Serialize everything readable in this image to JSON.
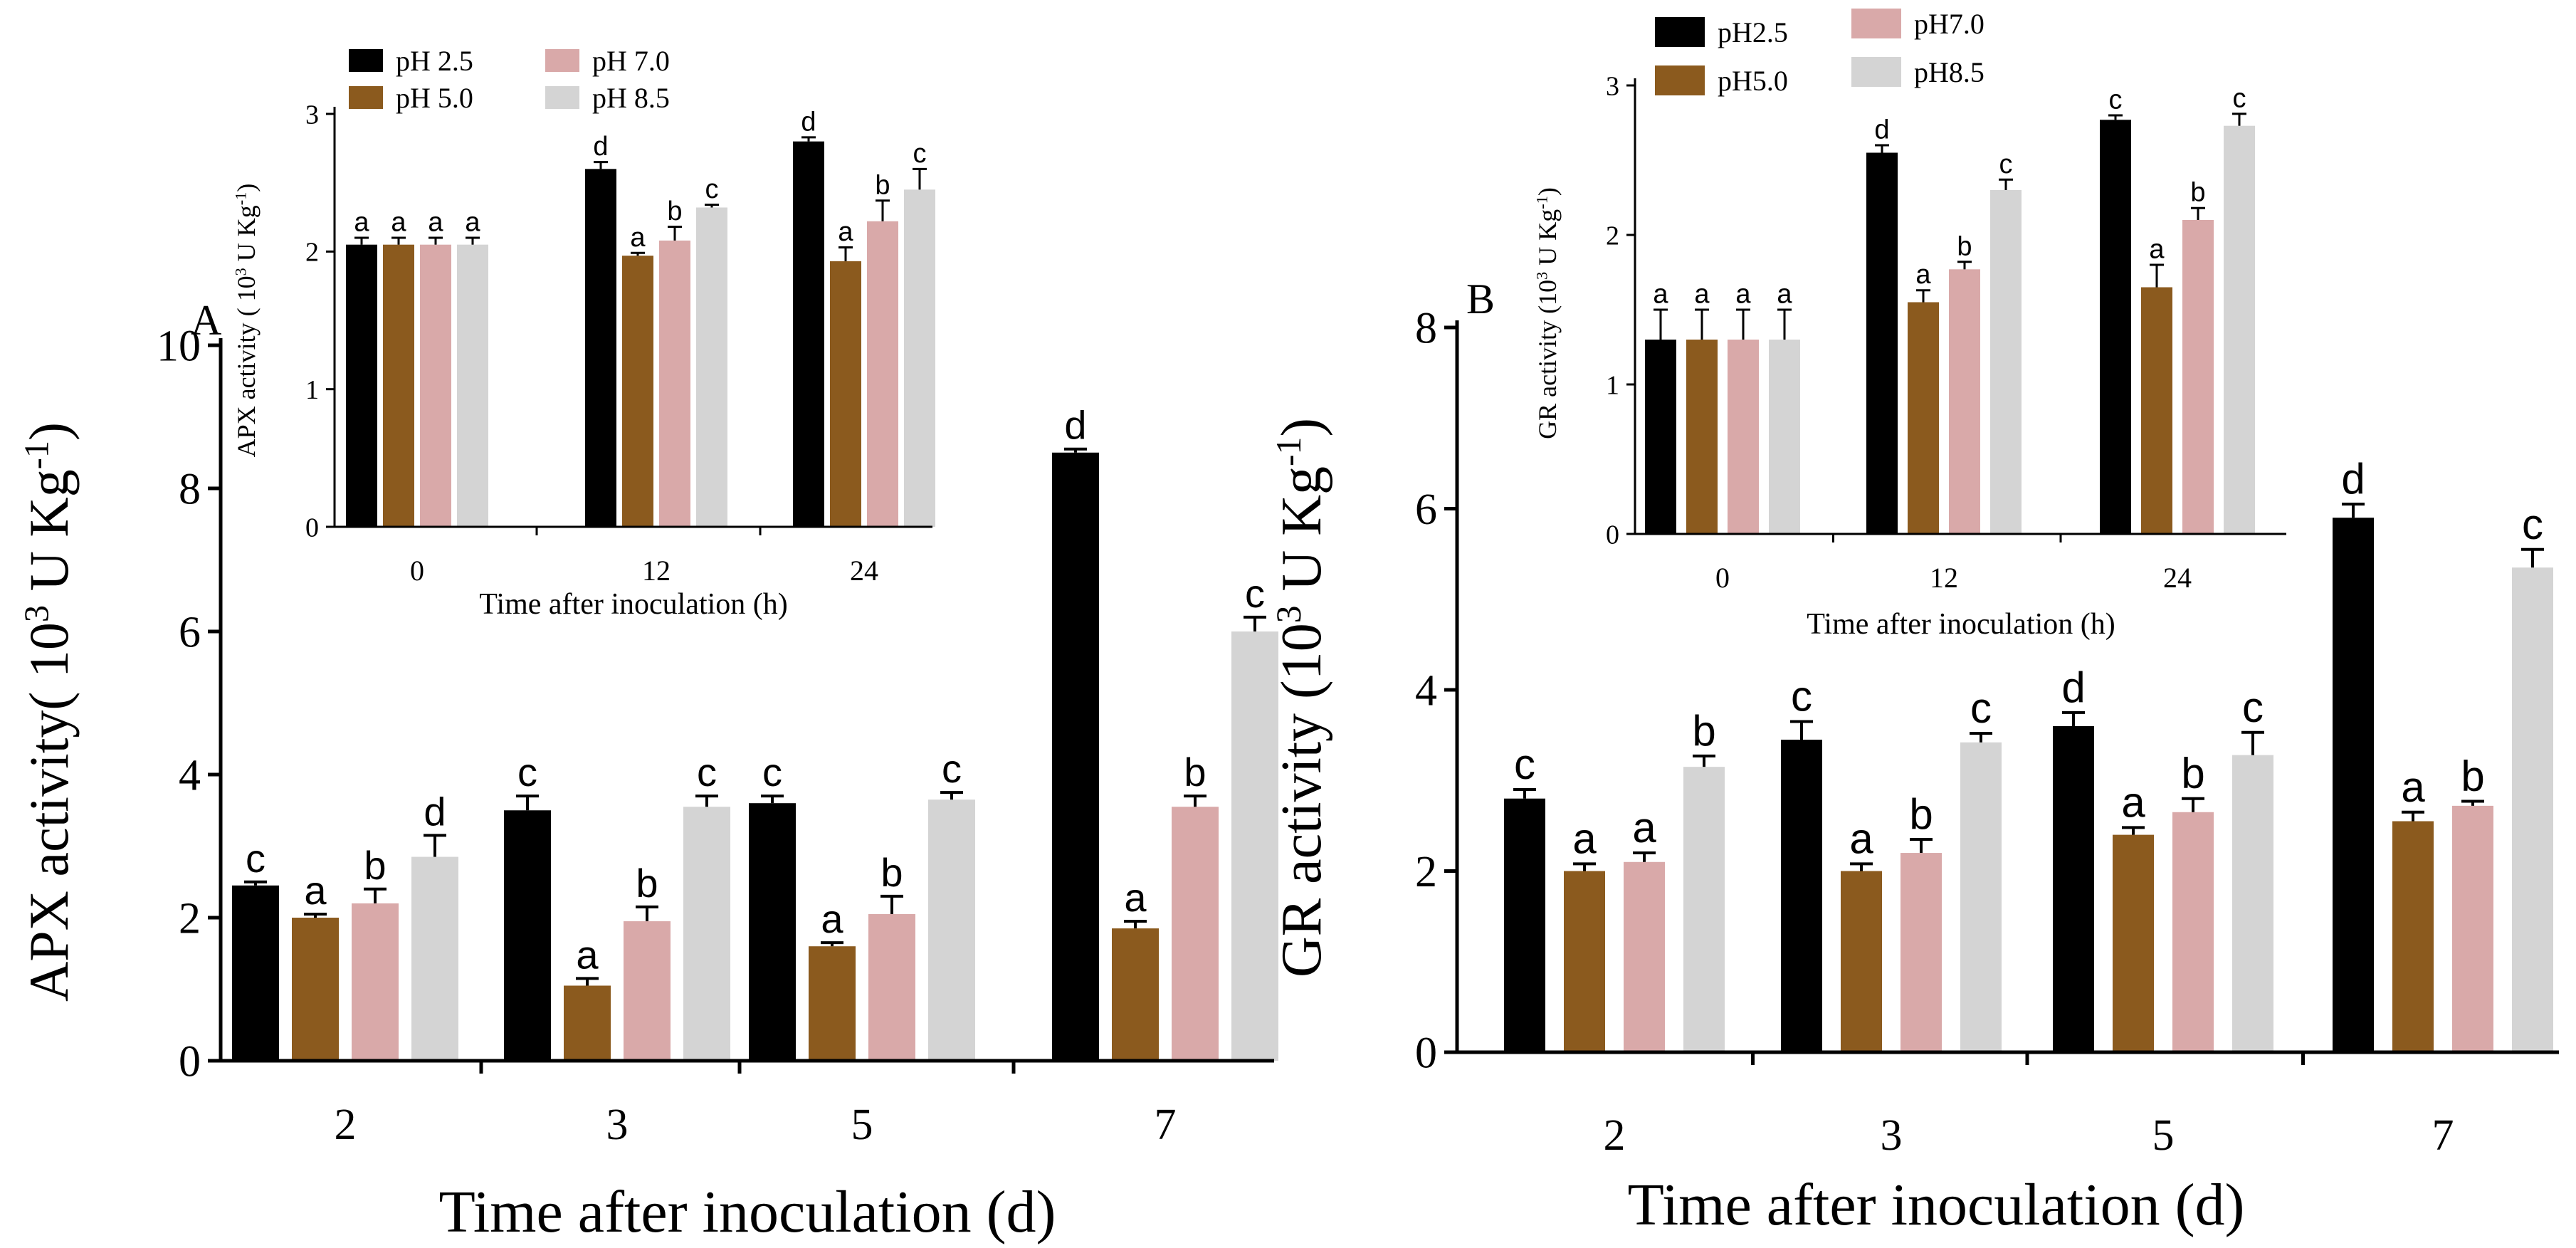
{
  "colors": {
    "series": [
      "#000000",
      "#8b5a1e",
      "#d9a9a9",
      "#d4d4d4"
    ],
    "axis": "#000000"
  },
  "chart_data": [
    {
      "id": "A-main",
      "panel_label": "A",
      "type": "bar",
      "xlabel": "Time after inoculation (d)",
      "ylabel_text": "APX activity( 10",
      "ylabel_sup1": "3",
      "ylabel_mid": " U Kg",
      "ylabel_sup2": "-1",
      "ylabel_end": ")",
      "ylim": [
        0,
        10
      ],
      "yticks": [
        "0",
        "2",
        "4",
        "6",
        "8",
        "10"
      ],
      "categories": [
        "2",
        "3",
        "5",
        "7"
      ],
      "series": [
        {
          "name": "pH 2.5",
          "values": [
            2.45,
            3.5,
            3.6,
            8.5
          ],
          "errors": [
            0.05,
            0.2,
            0.1,
            0.05
          ],
          "letters": [
            "c",
            "c",
            "c",
            "d"
          ]
        },
        {
          "name": "pH 5.0",
          "values": [
            2.0,
            1.05,
            1.6,
            1.85
          ],
          "errors": [
            0.05,
            0.1,
            0.05,
            0.1
          ],
          "letters": [
            "a",
            "a",
            "a",
            "a"
          ]
        },
        {
          "name": "pH 7.0",
          "values": [
            2.2,
            1.95,
            2.05,
            3.55
          ],
          "errors": [
            0.2,
            0.2,
            0.25,
            0.15
          ],
          "letters": [
            "b",
            "b",
            "b",
            "b"
          ]
        },
        {
          "name": "pH 8.5",
          "values": [
            2.85,
            3.55,
            3.65,
            6.0
          ],
          "errors": [
            0.3,
            0.15,
            0.1,
            0.2
          ],
          "letters": [
            "d",
            "c",
            "c",
            "c"
          ]
        }
      ]
    },
    {
      "id": "A-inset",
      "type": "bar",
      "xlabel": "Time after inoculation (h)",
      "ylabel_text": "APX activity ( 10",
      "ylabel_sup1": "3",
      "ylabel_mid": " U Kg",
      "ylabel_sup2": "-1",
      "ylabel_end": ")",
      "ylim": [
        0,
        3
      ],
      "yticks": [
        "0",
        "1",
        "2",
        "3"
      ],
      "categories": [
        "0",
        "12",
        "24"
      ],
      "legend": {
        "labels": [
          "pH 2.5",
          "pH 5.0",
          "pH 7.0",
          "pH 8.5"
        ],
        "placement": "top-left"
      },
      "series": [
        {
          "name": "pH 2.5",
          "values": [
            2.05,
            2.6,
            2.8
          ],
          "errors": [
            0.05,
            0.05,
            0.03
          ],
          "letters": [
            "a",
            "d",
            "d"
          ]
        },
        {
          "name": "pH 5.0",
          "values": [
            2.05,
            1.97,
            1.93
          ],
          "errors": [
            0.05,
            0.02,
            0.1
          ],
          "letters": [
            "a",
            "a",
            "a"
          ]
        },
        {
          "name": "pH 7.0",
          "values": [
            2.05,
            2.08,
            2.22
          ],
          "errors": [
            0.05,
            0.1,
            0.15
          ],
          "letters": [
            "a",
            "b",
            "b"
          ]
        },
        {
          "name": "pH 8.5",
          "values": [
            2.05,
            2.32,
            2.45
          ],
          "errors": [
            0.05,
            0.02,
            0.15
          ],
          "letters": [
            "a",
            "c",
            "c"
          ]
        }
      ]
    },
    {
      "id": "B-main",
      "panel_label": "B",
      "type": "bar",
      "xlabel": "Time after inoculation (d)",
      "ylabel_text": "GR activity (10",
      "ylabel_sup1": "3",
      "ylabel_mid": " U Kg",
      "ylabel_sup2": "-1",
      "ylabel_end": ")",
      "ylim": [
        0,
        8
      ],
      "yticks": [
        "0",
        "2",
        "4",
        "6",
        "8"
      ],
      "categories": [
        "2",
        "3",
        "5",
        "7"
      ],
      "series": [
        {
          "name": "pH2.5",
          "values": [
            2.8,
            3.45,
            3.6,
            5.9
          ],
          "errors": [
            0.1,
            0.2,
            0.15,
            0.15
          ],
          "letters": [
            "c",
            "c",
            "d",
            "d"
          ]
        },
        {
          "name": "pH5.0",
          "values": [
            2.0,
            2.0,
            2.4,
            2.55
          ],
          "errors": [
            0.08,
            0.08,
            0.08,
            0.1
          ],
          "letters": [
            "a",
            "a",
            "a",
            "a"
          ]
        },
        {
          "name": "pH7.0",
          "values": [
            2.1,
            2.2,
            2.65,
            2.72
          ],
          "errors": [
            0.1,
            0.15,
            0.15,
            0.05
          ],
          "letters": [
            "a",
            "b",
            "b",
            "b"
          ]
        },
        {
          "name": "pH8.5",
          "values": [
            3.15,
            3.42,
            3.28,
            5.35
          ],
          "errors": [
            0.12,
            0.1,
            0.25,
            0.2
          ],
          "letters": [
            "b",
            "c",
            "c",
            "c"
          ]
        }
      ]
    },
    {
      "id": "B-inset",
      "type": "bar",
      "xlabel": "Time after inoculation (h)",
      "ylabel_text": "GR activity (10",
      "ylabel_sup1": "3",
      "ylabel_mid": " U Kg",
      "ylabel_sup2": "-1",
      "ylabel_end": ")",
      "ylim": [
        0,
        3
      ],
      "yticks": [
        "0",
        "1",
        "2",
        "3"
      ],
      "categories": [
        "0",
        "12",
        "24"
      ],
      "legend": {
        "labels": [
          "pH2.5",
          "pH5.0",
          "pH7.0",
          "pH8.5"
        ],
        "placement": "top-left"
      },
      "series": [
        {
          "name": "pH2.5",
          "values": [
            1.3,
            2.55,
            2.77
          ],
          "errors": [
            0.2,
            0.05,
            0.03
          ],
          "letters": [
            "a",
            "d",
            "c"
          ]
        },
        {
          "name": "pH5.0",
          "values": [
            1.3,
            1.55,
            1.65
          ],
          "errors": [
            0.2,
            0.08,
            0.15
          ],
          "letters": [
            "a",
            "a",
            "a"
          ]
        },
        {
          "name": "pH7.0",
          "values": [
            1.3,
            1.77,
            2.1
          ],
          "errors": [
            0.2,
            0.05,
            0.08
          ],
          "letters": [
            "a",
            "b",
            "b"
          ]
        },
        {
          "name": "pH8.5",
          "values": [
            1.3,
            2.3,
            2.73
          ],
          "errors": [
            0.2,
            0.07,
            0.08
          ],
          "letters": [
            "a",
            "c",
            "c"
          ]
        }
      ]
    }
  ]
}
